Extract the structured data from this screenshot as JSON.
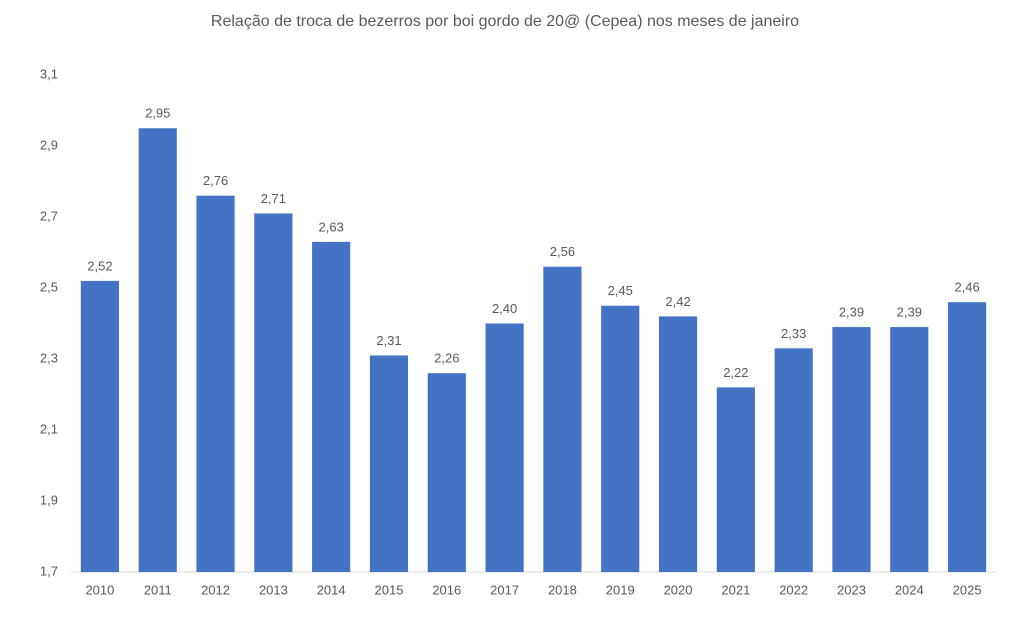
{
  "chart_data": {
    "type": "bar",
    "title": "Relação de troca de bezerros por boi gordo de 20@ (Cepea) nos meses de janeiro",
    "categories": [
      "2010",
      "2011",
      "2012",
      "2013",
      "2014",
      "2015",
      "2016",
      "2017",
      "2018",
      "2019",
      "2020",
      "2021",
      "2022",
      "2023",
      "2024",
      "2025"
    ],
    "values": [
      2.52,
      2.95,
      2.76,
      2.71,
      2.63,
      2.31,
      2.26,
      2.4,
      2.56,
      2.45,
      2.42,
      2.22,
      2.33,
      2.39,
      2.39,
      2.46
    ],
    "value_labels": [
      "2,52",
      "2,95",
      "2,76",
      "2,71",
      "2,63",
      "2,31",
      "2,26",
      "2,40",
      "2,56",
      "2,45",
      "2,42",
      "2,22",
      "2,33",
      "2,39",
      "2,39",
      "2,46"
    ],
    "color": "#4472c4",
    "ylim": [
      1.7,
      3.1
    ],
    "yticks": [
      {
        "value": 1.7,
        "label": "1,7"
      },
      {
        "value": 1.9,
        "label": "1,9"
      },
      {
        "value": 2.1,
        "label": "2,1"
      },
      {
        "value": 2.3,
        "label": "2,3"
      },
      {
        "value": 2.5,
        "label": "2,5"
      },
      {
        "value": 2.7,
        "label": "2,7"
      },
      {
        "value": 2.9,
        "label": "2,9"
      },
      {
        "value": 3.1,
        "label": "3,1"
      }
    ],
    "grid": false
  }
}
